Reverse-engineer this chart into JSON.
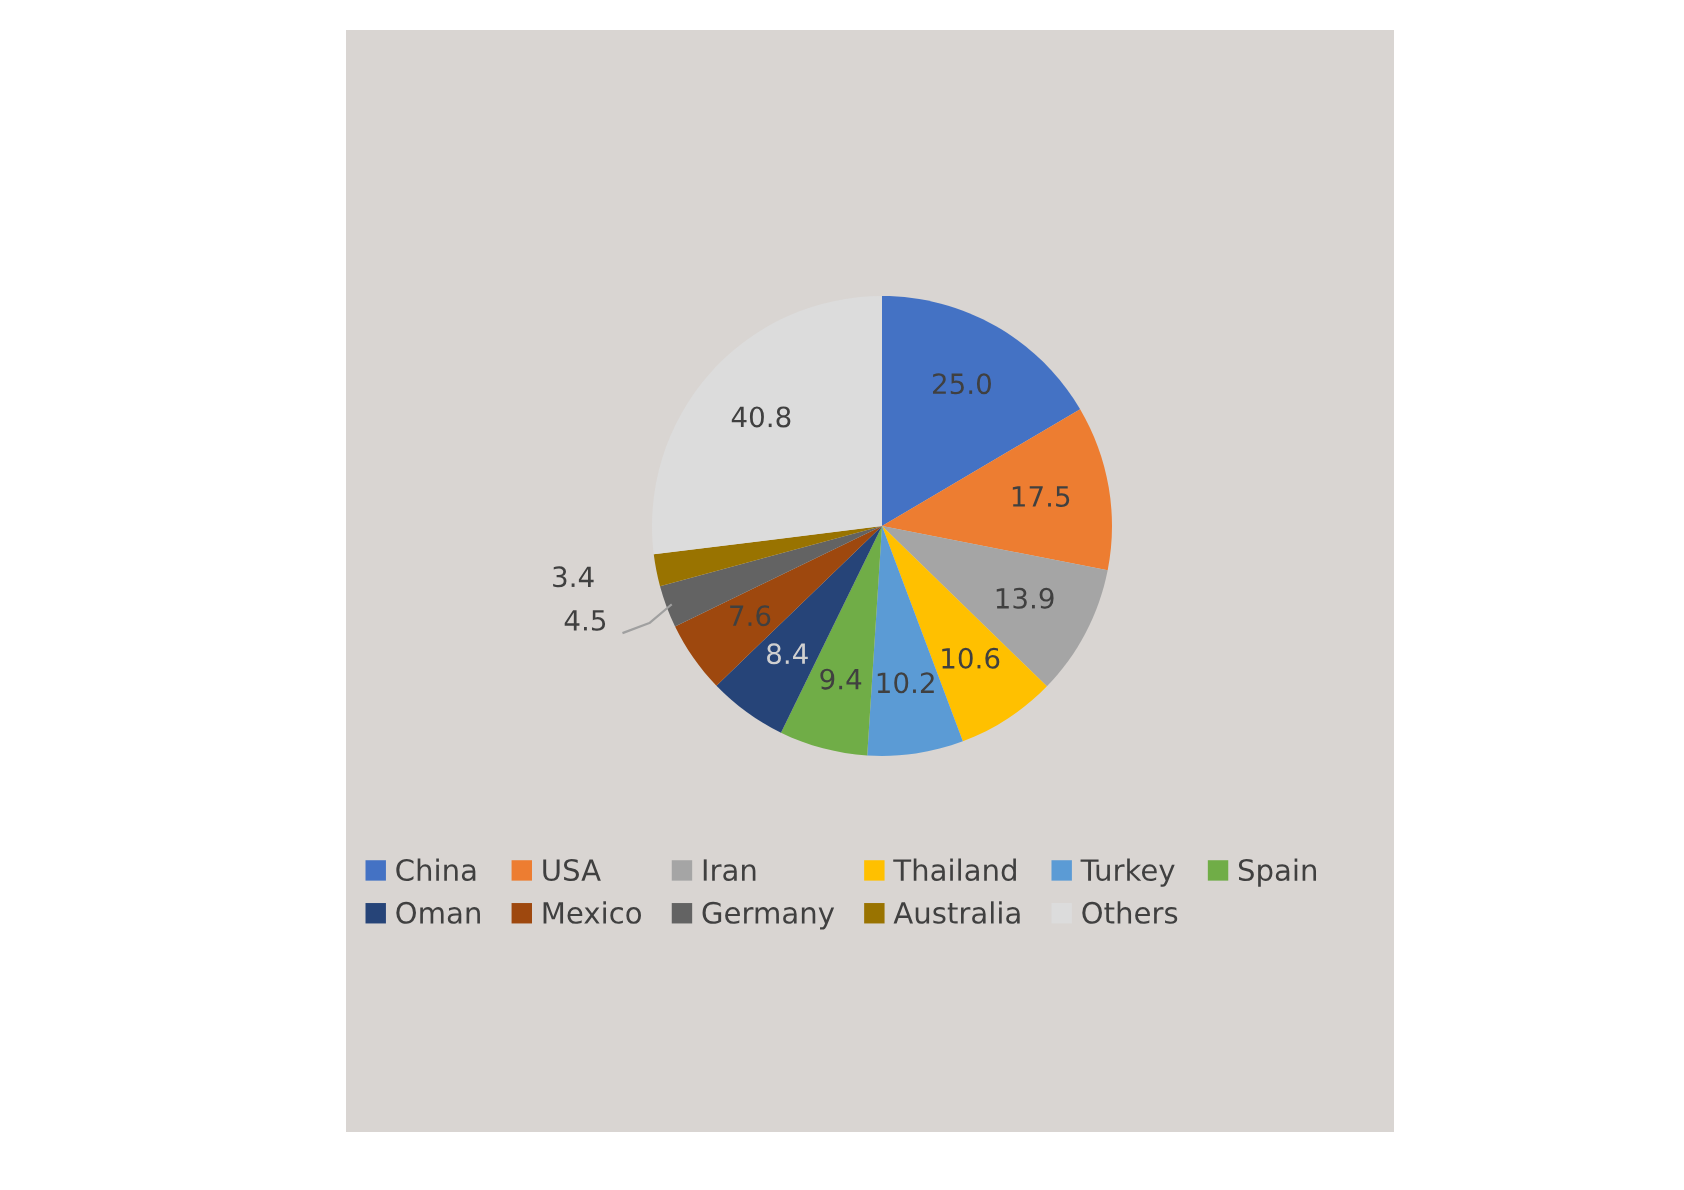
{
  "chart_data": {
    "type": "pie",
    "categories": [
      "China",
      "USA",
      "Iran",
      "Thailand",
      "Turkey",
      "Spain",
      "Oman",
      "Mexico",
      "Germany",
      "Australia",
      "Others"
    ],
    "values": [
      25.0,
      17.5,
      13.9,
      10.6,
      10.2,
      9.4,
      8.4,
      7.6,
      4.5,
      3.4,
      40.8
    ],
    "colors": [
      "#4472c4",
      "#ed7d31",
      "#a5a5a5",
      "#ffc000",
      "#5b9bd5",
      "#70ad47",
      "#264478",
      "#9e480e",
      "#636363",
      "#997300",
      "#dcdcdc"
    ],
    "value_labels": [
      "25.0",
      "17.5",
      "13.9",
      "10.6",
      "10.2",
      "9.4",
      "8.4",
      "7.6",
      "4.5",
      "3.4",
      "40.8"
    ],
    "legend": "bottom"
  }
}
